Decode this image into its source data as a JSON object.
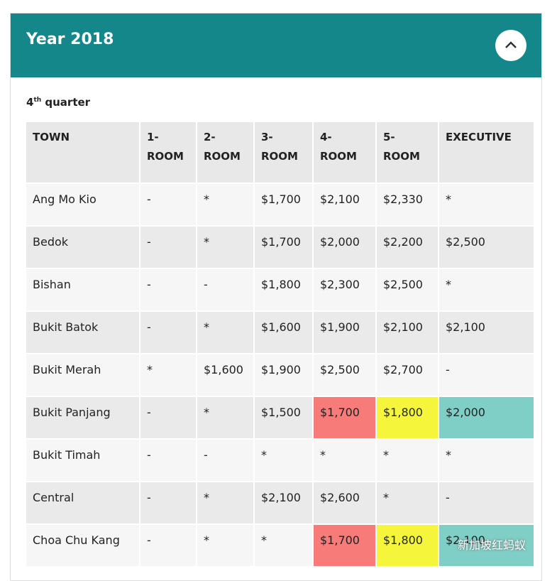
{
  "header": {
    "title": "Year 2018"
  },
  "quarter": {
    "number": "4",
    "suffix": "th",
    "label": "quarter"
  },
  "table": {
    "columns": [
      "TOWN",
      "1-ROOM",
      "2-ROOM",
      "3-ROOM",
      "4-ROOM",
      "5-ROOM",
      "EXECUTIVE"
    ],
    "rows": [
      [
        "Ang Mo Kio",
        "-",
        "*",
        "$1,700",
        "$2,100",
        "$2,330",
        "*"
      ],
      [
        "Bedok",
        "-",
        "*",
        "$1,700",
        "$2,000",
        "$2,200",
        "$2,500"
      ],
      [
        "Bishan",
        "-",
        "-",
        "$1,800",
        "$2,300",
        "$2,500",
        "*"
      ],
      [
        "Bukit Batok",
        "-",
        "*",
        "$1,600",
        "$1,900",
        "$2,100",
        "$2,100"
      ],
      [
        "Bukit Merah",
        "*",
        "$1,600",
        "$1,900",
        "$2,500",
        "$2,700",
        "-"
      ],
      [
        "Bukit Panjang",
        "-",
        "*",
        "$1,500",
        "$1,700",
        "$1,800",
        "$2,000"
      ],
      [
        "Bukit Timah",
        "-",
        "-",
        "*",
        "*",
        "*",
        "*"
      ],
      [
        "Central",
        "-",
        "*",
        "$2,100",
        "$2,600",
        "*",
        "-"
      ],
      [
        "Choa Chu Kang",
        "-",
        "*",
        "*",
        "$1,700",
        "$1,800",
        "$2,100"
      ]
    ],
    "highlights": [
      {
        "row": 5,
        "col": 4,
        "color": "#f77b78"
      },
      {
        "row": 5,
        "col": 5,
        "color": "#f5f53c"
      },
      {
        "row": 5,
        "col": 6,
        "color": "#80cfc7"
      },
      {
        "row": 8,
        "col": 4,
        "color": "#f77b78"
      },
      {
        "row": 8,
        "col": 5,
        "color": "#f5f53c"
      },
      {
        "row": 8,
        "col": 6,
        "color": "#80cfc7"
      }
    ]
  },
  "watermark": "新加坡红蚂蚁"
}
